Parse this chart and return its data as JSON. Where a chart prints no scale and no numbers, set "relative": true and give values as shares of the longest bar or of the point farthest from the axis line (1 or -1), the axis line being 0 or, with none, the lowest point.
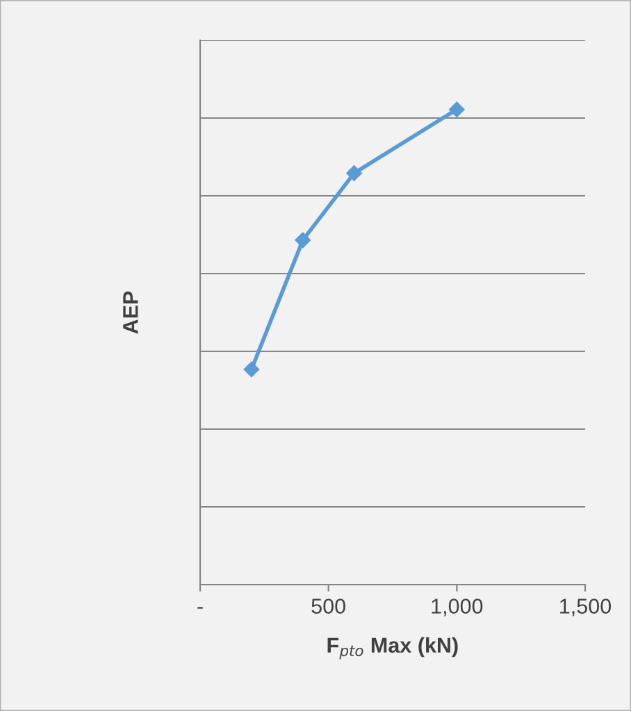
{
  "chart_data": {
    "type": "line",
    "xlabel": "F$_{pto}$ Max (kN)",
    "ylabel": "AEP",
    "relative": true,
    "x": [
      200,
      400,
      600,
      1000
    ],
    "series": [
      {
        "color": "#5b9bd5",
        "values": [
          0.453,
          0.725,
          0.866,
          1
        ]
      }
    ],
    "xlim": [
      0,
      1500
    ],
    "xticks": [
      {
        "value": 0,
        "label": "-"
      },
      {
        "value": 500,
        "label": "500"
      },
      {
        "value": 1000,
        "label": "1,000"
      },
      {
        "value": 1500,
        "label": "1,500"
      }
    ],
    "grid": "y",
    "marker": "diamond",
    "line_style": "solid",
    "legend": false
  }
}
